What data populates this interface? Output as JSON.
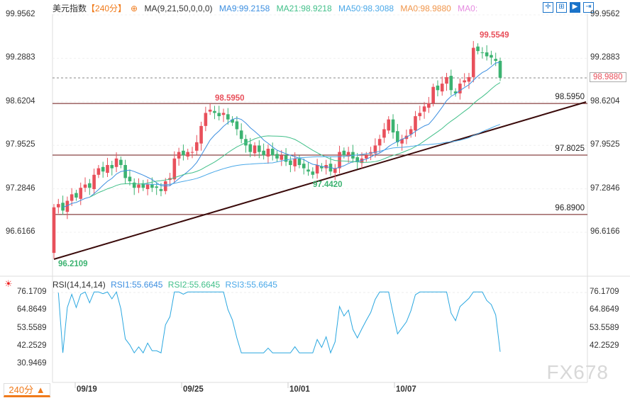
{
  "header": {
    "title": "美元指数",
    "period": "【240分】",
    "ma_label": "MA(9,21,50,0,0,0)",
    "ma9": "MA9:99.2158",
    "ma21": "MA21:98.9218",
    "ma50": "MA50:98.3088",
    "ma0a": "MA0:98.9880",
    "ma0b": "MA0:"
  },
  "colors": {
    "up": "#e8505b",
    "down": "#3cb371",
    "ma9": "#3d8fe0",
    "ma21": "#43c08a",
    "ma50": "#4aa8e8",
    "trend": "#3a0a0a",
    "hline": "#6b1515",
    "rsi": "#2aa7e0"
  },
  "toolbar": [
    "crosshair",
    "zoom-in",
    "play",
    "exit"
  ],
  "chart_data": [
    {
      "type": "candlestick",
      "y_ticks": [
        "99.9562",
        "99.2883",
        "98.6204",
        "97.9525",
        "97.2846",
        "96.6166"
      ],
      "ylim": [
        96.0,
        100.05
      ],
      "x_ticks": [
        "09/19",
        "09/25",
        "10/01",
        "10/07"
      ],
      "first_open": 96.3,
      "closes": [
        97.0,
        97.05,
        96.95,
        97.1,
        97.2,
        97.15,
        97.3,
        97.35,
        97.3,
        97.5,
        97.6,
        97.55,
        97.65,
        97.6,
        97.75,
        97.65,
        97.45,
        97.4,
        97.3,
        97.35,
        97.3,
        97.35,
        97.3,
        97.3,
        97.25,
        97.4,
        97.45,
        97.75,
        97.85,
        97.8,
        97.85,
        97.85,
        98.0,
        98.25,
        98.45,
        98.5,
        98.45,
        98.4,
        98.45,
        98.35,
        98.3,
        98.2,
        98.05,
        97.95,
        97.85,
        97.95,
        97.85,
        97.8,
        97.9,
        97.8,
        97.75,
        97.8,
        97.7,
        97.65,
        97.75,
        97.65,
        97.6,
        97.55,
        97.5,
        97.65,
        97.6,
        97.65,
        97.55,
        97.6,
        97.85,
        97.8,
        97.85,
        97.75,
        97.7,
        97.75,
        97.8,
        97.85,
        97.95,
        98.05,
        98.2,
        98.35,
        98.15,
        98.0,
        98.05,
        98.1,
        98.2,
        98.4,
        98.45,
        98.55,
        98.6,
        98.85,
        98.8,
        98.9,
        99.0,
        98.8,
        98.75,
        98.9,
        98.95,
        99.0,
        99.45,
        99.4,
        99.38,
        99.32,
        99.3,
        99.25,
        98.99
      ],
      "annotations": {
        "low": "96.2109",
        "high1": "98.5950",
        "low2": "97.4420",
        "high2": "99.5549",
        "current": "98.9880"
      },
      "hlines": [
        {
          "value": 98.595,
          "label": "98.5950"
        },
        {
          "value": 97.8025,
          "label": "97.8025"
        },
        {
          "value": 96.89,
          "label": "96.8900"
        }
      ],
      "trendline": {
        "from": 96.2109,
        "to_label": "98.5950"
      }
    },
    {
      "type": "line",
      "title": "RSI(14,14,14)",
      "series_labels": [
        "RSI1:55.6645",
        "RSI2:55.6645",
        "RSI3:55.6645"
      ],
      "y_ticks": [
        "76.1709",
        "64.8649",
        "53.5589",
        "42.2529",
        "30.9469"
      ],
      "ylim": [
        30.9469,
        76.1709
      ]
    }
  ],
  "footer": {
    "timeframe": "240分 ▲",
    "watermark": "FX678"
  }
}
